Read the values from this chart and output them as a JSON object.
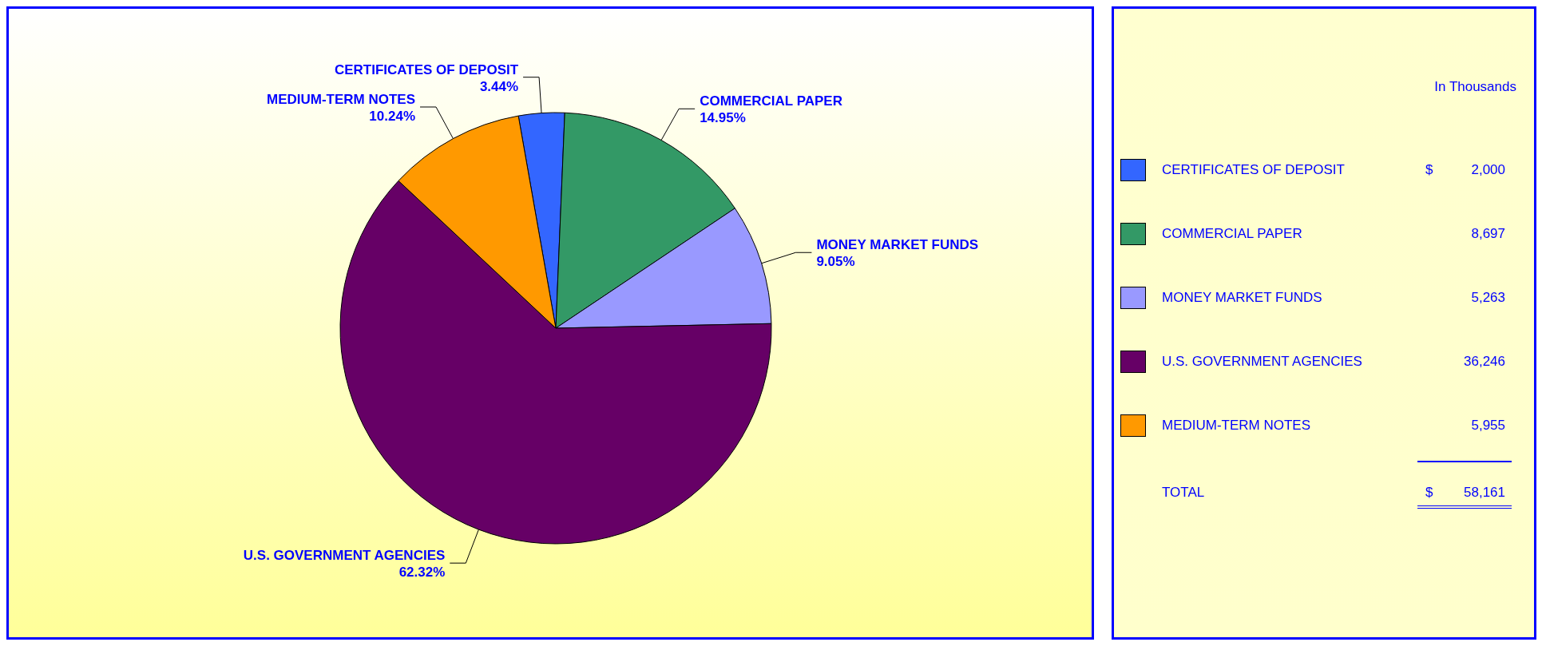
{
  "chart_data": {
    "type": "pie",
    "categories": [
      "CERTIFICATES OF DEPOSIT",
      "COMMERCIAL PAPER",
      "MONEY MARKET FUNDS",
      "U.S. GOVERNMENT AGENCIES",
      "MEDIUM-TERM NOTES"
    ],
    "values": [
      3.44,
      14.95,
      9.05,
      62.32,
      10.24
    ],
    "colors": [
      "#3366ff",
      "#339966",
      "#9999ff",
      "#660066",
      "#ff9900"
    ],
    "value_labels": [
      "3.44%",
      "14.95%",
      "9.05%",
      "62.32%",
      "10.24%"
    ],
    "legend": "right",
    "annotations": [
      "In Thousands",
      "$",
      "2,000",
      "8,697",
      "5,263",
      "36,246",
      "5,955",
      "TOTAL",
      "$",
      "58,161"
    ]
  }
}
